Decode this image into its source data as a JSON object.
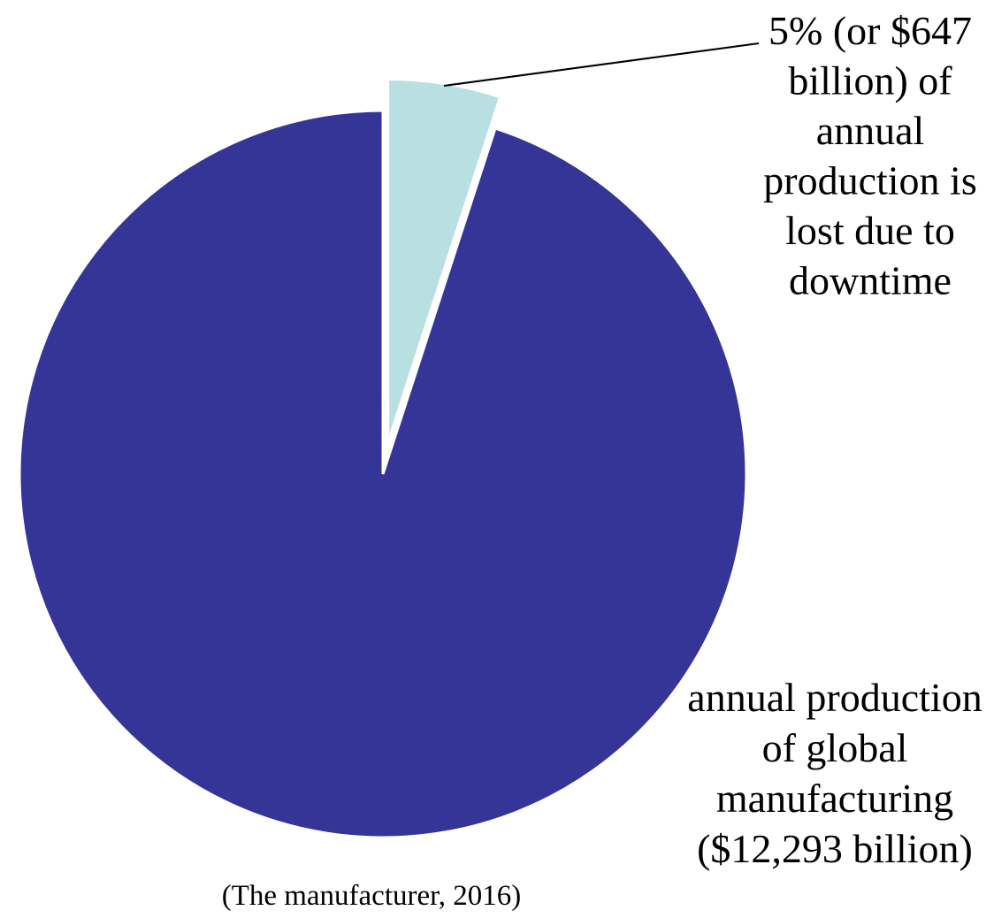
{
  "chart_data": {
    "type": "pie",
    "slices": [
      {
        "value": 647,
        "unit": "billion USD",
        "percent": 5,
        "color": "#b8e0e3",
        "label_lines": [
          "5% (or $647",
          "billion) of",
          "annual",
          "production is",
          "lost due to",
          "downtime"
        ]
      },
      {
        "value": 12293,
        "unit": "billion USD",
        "percent": 95,
        "color": "#353598",
        "label_lines": [
          "annual production",
          "of global",
          "manufacturing",
          "($12,293 billion)"
        ]
      }
    ],
    "source": "(The manufacturer, 2016)",
    "legend": "none",
    "start": "12 o'clock",
    "direction": "clockwise",
    "exploded_slice": 0
  }
}
